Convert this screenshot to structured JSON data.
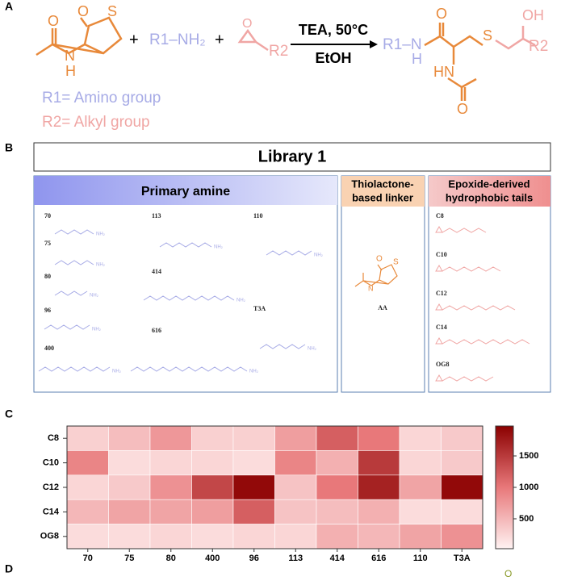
{
  "panel_labels": [
    "A",
    "B",
    "C",
    "D"
  ],
  "panel_a": {
    "reaction_condition": "TEA, 50°C",
    "solvent": "EtOH",
    "amine": "R1–NH₂",
    "epoxide_group": "R2",
    "product_r1": "R1–N",
    "product_r2": "R2",
    "plus": "+",
    "r1_definition": "R1= Amino group",
    "r2_definition": "R2= Alkyl group",
    "atoms": {
      "O": "O",
      "S": "S",
      "N": "N",
      "H": "H",
      "HN": "HN",
      "OH": "OH"
    }
  },
  "panel_b": {
    "title": "Library 1",
    "amine_header": "Primary amine",
    "linker_header": [
      "Thiolactone-",
      "based linker"
    ],
    "tail_header": [
      "Epoxide-derived",
      "hydrophobic tails"
    ],
    "amines": [
      "70",
      "75",
      "80",
      "96",
      "400",
      "113",
      "414",
      "616",
      "110",
      "T3A"
    ],
    "linker": "AA",
    "tails": [
      "C8",
      "C10",
      "C12",
      "C14",
      "OG8"
    ],
    "nh2": "NH₂"
  },
  "chart_data": {
    "type": "heatmap",
    "categories": [
      "70",
      "75",
      "80",
      "400",
      "96",
      "113",
      "414",
      "616",
      "110",
      "T3A"
    ],
    "rows": [
      "C8",
      "C10",
      "C12",
      "C14",
      "OG8"
    ],
    "values": [
      [
        300,
        450,
        750,
        300,
        300,
        700,
        1200,
        1000,
        250,
        350
      ],
      [
        900,
        200,
        250,
        250,
        200,
        900,
        550,
        1500,
        250,
        350
      ],
      [
        250,
        350,
        800,
        1400,
        1900,
        400,
        1000,
        1700,
        650,
        1900
      ],
      [
        500,
        650,
        650,
        700,
        1200,
        400,
        450,
        550,
        200,
        200
      ],
      [
        200,
        200,
        250,
        200,
        250,
        250,
        550,
        500,
        650,
        800
      ]
    ],
    "zlim": [
      25,
      1975
    ],
    "zticks": [
      500,
      1000,
      1500
    ],
    "colormap": [
      "#fff2f2",
      "#e8787a",
      "#8b0000"
    ]
  }
}
